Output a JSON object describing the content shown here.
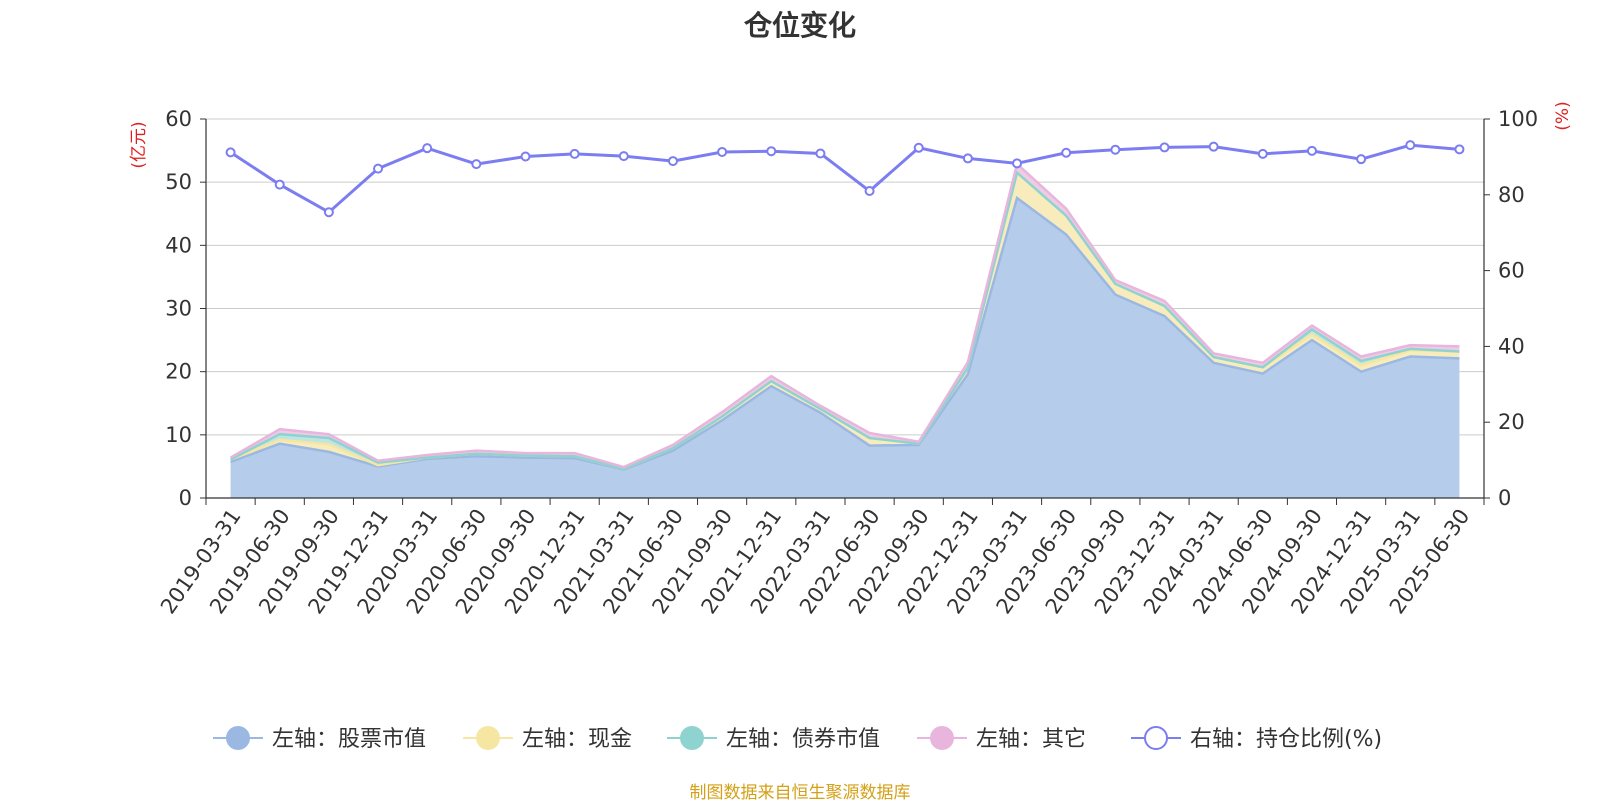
{
  "chart_data": {
    "type": "area",
    "title": "仓位变化",
    "left_axis_unit": "(亿元)",
    "right_axis_unit": "(%)",
    "ylim_left": [
      0,
      60
    ],
    "yticks_left": [
      0,
      10,
      20,
      30,
      40,
      50,
      60
    ],
    "ylim_right": [
      0,
      100
    ],
    "yticks_right": [
      0,
      20,
      40,
      60,
      80,
      100
    ],
    "grid": true,
    "legend_position": "bottom",
    "x": [
      "2019-03-31",
      "2019-06-30",
      "2019-09-30",
      "2019-12-31",
      "2020-03-31",
      "2020-06-30",
      "2020-09-30",
      "2020-12-31",
      "2021-03-31",
      "2021-06-30",
      "2021-09-30",
      "2021-12-31",
      "2022-03-31",
      "2022-06-30",
      "2022-09-30",
      "2022-12-31",
      "2023-03-31",
      "2023-06-30",
      "2023-09-30",
      "2023-12-31",
      "2024-03-31",
      "2024-06-30",
      "2024-09-30",
      "2024-12-31",
      "2025-03-31",
      "2025-06-30"
    ],
    "series": [
      {
        "name": "左轴：股票市值",
        "axis": "left",
        "kind": "stacked-area",
        "color": "#9bb8e3",
        "fill": "#b6cceb",
        "values": [
          5.7,
          8.6,
          7.3,
          5.0,
          6.2,
          6.6,
          6.4,
          6.3,
          4.5,
          7.5,
          12.3,
          17.7,
          13.5,
          8.3,
          8.4,
          19.6,
          47.5,
          41.7,
          32.2,
          28.8,
          21.4,
          19.7,
          25.0,
          20.0,
          22.4,
          22.1
        ]
      },
      {
        "name": "左轴：现金",
        "axis": "left",
        "kind": "stacked-area",
        "color": "#f5e6a1",
        "fill": "#f8ecbd",
        "values": [
          0.4,
          0.6,
          1.2,
          0.2,
          0.2,
          0.4,
          0.3,
          0.3,
          0.1,
          0.4,
          0.6,
          0.8,
          0.6,
          1.2,
          0.2,
          1.0,
          4.0,
          3.0,
          1.7,
          1.6,
          0.9,
          1.0,
          0.9,
          1.0,
          1.0,
          1.1
        ]
      },
      {
        "name": "左轴：债券市值",
        "axis": "left",
        "kind": "stacked-area",
        "color": "#8fd3d0",
        "fill": "#bfe5e3",
        "values": [
          0.0,
          0.9,
          1.0,
          0.4,
          0.0,
          0.0,
          0.0,
          0.0,
          0.0,
          0.0,
          0.0,
          0.0,
          0.0,
          0.0,
          0.0,
          0.0,
          0.0,
          0.0,
          0.0,
          0.0,
          0.0,
          0.0,
          0.8,
          0.7,
          0.2,
          0.0
        ]
      },
      {
        "name": "左轴：其它",
        "axis": "left",
        "kind": "stacked-area",
        "color": "#e8b5dc",
        "fill": "#efcbe6",
        "values": [
          0.3,
          0.8,
          0.6,
          0.3,
          0.4,
          0.5,
          0.4,
          0.5,
          0.3,
          0.5,
          0.7,
          0.8,
          0.5,
          0.8,
          0.3,
          0.9,
          1.4,
          1.1,
          0.6,
          0.8,
          0.6,
          0.7,
          0.6,
          0.7,
          0.6,
          0.8
        ]
      },
      {
        "name": "右轴：持仓比例(%)",
        "axis": "right",
        "kind": "line",
        "color": "#7b7df0",
        "values": [
          91.2,
          82.7,
          75.4,
          86.9,
          92.3,
          88.1,
          90.1,
          90.8,
          90.2,
          88.9,
          91.3,
          91.5,
          90.9,
          81.0,
          92.4,
          89.6,
          88.3,
          91.1,
          91.9,
          92.5,
          92.7,
          90.8,
          91.6,
          89.4,
          93.1,
          92.0
        ]
      }
    ]
  },
  "source_note": "制图数据来自恒生聚源数据库"
}
